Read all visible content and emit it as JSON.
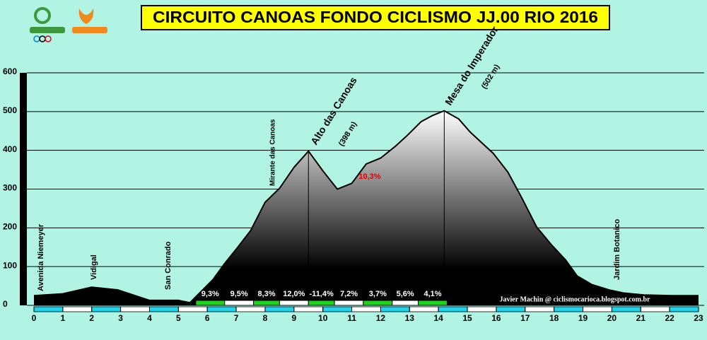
{
  "chart_data": {
    "type": "area",
    "title": "CIRCUITO CANOAS FONDO CICLISMO JJ.00 RIO 2016",
    "x": [
      0,
      1,
      2,
      2.9,
      4,
      5,
      5.4,
      6.2,
      6.6,
      7.0,
      7.5,
      8.0,
      8.5,
      9.0,
      9.5,
      10.0,
      10.5,
      11.0,
      11.5,
      12.0,
      12.5,
      12.9,
      13.4,
      13.8,
      14.2,
      14.7,
      15.1,
      15.9,
      16.4,
      16.9,
      17.4,
      17.9,
      18.4,
      18.8,
      19.3,
      19.9,
      20.4,
      21.1,
      22.1,
      23
    ],
    "series": [
      {
        "color": "#000000",
        "values": [
          25,
          30,
          47,
          40,
          13,
          13,
          7,
          67,
          108,
          145,
          193,
          266,
          302,
          356,
          398,
          347,
          300,
          315,
          365,
          380,
          410,
          437,
          474,
          490,
          502,
          481,
          447,
          392,
          344,
          275,
          202,
          157,
          117,
          76,
          54,
          40,
          32,
          27,
          25,
          25
        ]
      }
    ],
    "xlim": [
      0,
      23
    ],
    "ylim": [
      0,
      600
    ],
    "xticks": [
      0,
      1,
      2,
      3,
      4,
      5,
      6,
      7,
      8,
      9,
      10,
      11,
      12,
      13,
      14,
      15,
      16,
      17,
      18,
      19,
      20,
      21,
      22,
      23
    ],
    "yticks": [
      0,
      100,
      200,
      300,
      400,
      500,
      600
    ],
    "grid": true,
    "gradients": {
      "bins": [
        5.6,
        6.6,
        7.6,
        8.5,
        9.5,
        10.4,
        11.4,
        12.4,
        13.3,
        14.3
      ],
      "values": [
        9.3,
        9.5,
        8.3,
        12.0,
        -11.4,
        7.2,
        3.7,
        5.6,
        4.1
      ],
      "value_labels": [
        "9,3%",
        "9,5%",
        "8,3%",
        "12,0%",
        "-11,4%",
        "7,2%",
        "3,7%",
        "5,6%",
        "4,1%"
      ]
    },
    "annotations": [
      "Avenida Niemeyer",
      "Vidigal",
      "San Conrado",
      "Mirante das Canoas",
      "Alto das Canoas",
      "(398 m)",
      "Mesa do Imperador",
      "(502 m)",
      "10,3%",
      "Jardim Botanico",
      "Javier Machin @ ciclismocarioca.blogspot.com.br"
    ]
  }
}
